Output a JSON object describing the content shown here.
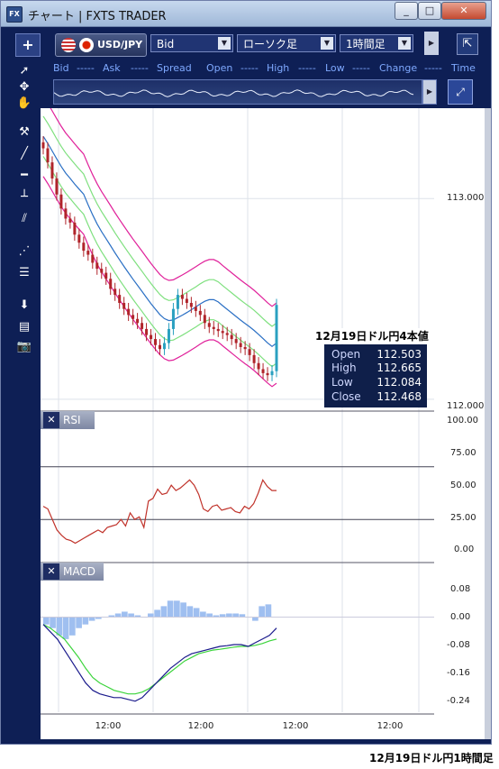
{
  "window": {
    "title": "チャート | FXTS TRADER",
    "app_icon": "FX",
    "controls": [
      "minimize",
      "maximize",
      "close"
    ]
  },
  "toolbar": {
    "add_label": "+",
    "pair": "USD/JPY",
    "price_type": "Bid",
    "chart_type": "ローソク足",
    "timeframe": "1時間足",
    "detach_icon": "arrow-out-icon"
  },
  "quote_labels": {
    "bid": "Bid",
    "bid_val": "-----",
    "ask": "Ask",
    "ask_val": "-----",
    "spread": "Spread",
    "open": "Open",
    "high": "High",
    "high_val": "-----",
    "low": "Low",
    "low_val": "-----",
    "change": "Change",
    "change_val": "-----",
    "time": "Time"
  },
  "price_axis": {
    "ticks": [
      "113.000",
      "112.000"
    ],
    "ylim": [
      111.95,
      113.45
    ]
  },
  "rsi": {
    "title": "RSI",
    "ticks": [
      "100.00",
      "75.00",
      "50.00",
      "25.00",
      "0.00"
    ]
  },
  "macd": {
    "title": "MACD",
    "ticks": [
      "0.08",
      "0.00",
      "-0.08",
      "-0.16",
      "-0.24"
    ]
  },
  "x_axis": {
    "ticks": [
      "12:00",
      "12:00",
      "12:00",
      "12:00"
    ]
  },
  "info_box": {
    "open_label": "Open",
    "open": "112.503",
    "high_label": "High",
    "high": "112.665",
    "low_label": "Low",
    "low": "112.084",
    "close_label": "Close",
    "close": "112.468"
  },
  "captions": {
    "top": "12月19日ドル円4本値",
    "bottom": "12月19日ドル円1時間足"
  },
  "colors": {
    "frame": "#0e1f55",
    "bollinger_outer": "#e0209a",
    "bollinger_inner": "#7ee07e",
    "moving_average": "#2a6fc4",
    "candle_up": "#2aa0c0",
    "candle_down": "#b0242a",
    "rsi_line": "#c0322a",
    "macd_line": "#1a1a8c",
    "signal_line": "#3bd43b",
    "macd_hist": "#9fbff0"
  },
  "chart_data": {
    "type": "line",
    "price_ylim": [
      111.95,
      113.45
    ],
    "rsi_ylim": [
      0,
      100
    ],
    "macd_ylim": [
      -0.26,
      0.1
    ],
    "rsi_levels": [
      70,
      30
    ],
    "close": [
      113.25,
      113.18,
      113.1,
      113.02,
      112.95,
      112.9,
      112.88,
      112.82,
      112.78,
      112.74,
      112.72,
      112.68,
      112.65,
      112.63,
      112.6,
      112.55,
      112.52,
      112.48,
      112.45,
      112.42,
      112.4,
      112.38,
      112.35,
      112.32,
      112.3,
      112.27,
      112.25,
      112.28,
      112.35,
      112.45,
      112.52,
      112.5,
      112.48,
      112.46,
      112.44,
      112.42,
      112.38,
      112.36,
      112.35,
      112.34,
      112.33,
      112.32,
      112.3,
      112.28,
      112.26,
      112.25,
      112.22,
      112.18,
      112.15,
      112.13,
      112.12,
      112.14,
      112.47
    ],
    "rsi": [
      40,
      38,
      30,
      22,
      18,
      15,
      14,
      12,
      14,
      16,
      18,
      20,
      22,
      20,
      24,
      25,
      26,
      30,
      25,
      35,
      30,
      32,
      24,
      44,
      46,
      53,
      49,
      50,
      56,
      52,
      54,
      57,
      60,
      56,
      49,
      38,
      36,
      40,
      41,
      37,
      38,
      39,
      36,
      35,
      40,
      38,
      42,
      50,
      60,
      55,
      52,
      52
    ],
    "macd": [
      -0.02,
      -0.04,
      -0.06,
      -0.09,
      -0.12,
      -0.15,
      -0.18,
      -0.2,
      -0.21,
      -0.215,
      -0.22,
      -0.22,
      -0.225,
      -0.23,
      -0.22,
      -0.2,
      -0.18,
      -0.16,
      -0.14,
      -0.125,
      -0.11,
      -0.1,
      -0.095,
      -0.09,
      -0.085,
      -0.08,
      -0.078,
      -0.075,
      -0.075,
      -0.08,
      -0.07,
      -0.06,
      -0.05,
      -0.03
    ],
    "signal": [
      -0.02,
      -0.03,
      -0.045,
      -0.06,
      -0.085,
      -0.11,
      -0.14,
      -0.165,
      -0.18,
      -0.19,
      -0.2,
      -0.205,
      -0.21,
      -0.21,
      -0.205,
      -0.195,
      -0.18,
      -0.165,
      -0.15,
      -0.135,
      -0.12,
      -0.11,
      -0.1,
      -0.095,
      -0.09,
      -0.088,
      -0.085,
      -0.082,
      -0.08,
      -0.08,
      -0.077,
      -0.072,
      -0.065,
      -0.06
    ],
    "macd_hist": [
      -0.02,
      -0.03,
      -0.05,
      -0.06,
      -0.05,
      -0.03,
      -0.02,
      -0.01,
      -0.005,
      0.0,
      0.005,
      0.01,
      0.015,
      0.01,
      0.005,
      0.0,
      0.01,
      0.02,
      0.03,
      0.045,
      0.045,
      0.04,
      0.03,
      0.025,
      0.015,
      0.01,
      0.005,
      0.008,
      0.01,
      0.01,
      0.008,
      0.0,
      -0.01,
      0.03,
      0.035
    ]
  }
}
